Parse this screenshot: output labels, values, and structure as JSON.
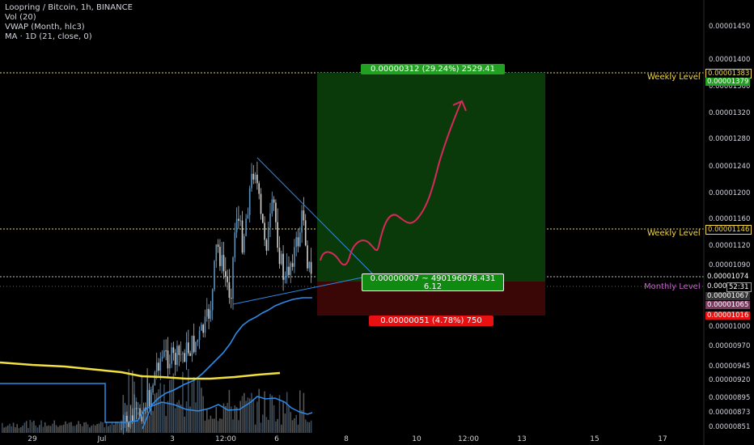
{
  "legend": {
    "title": "Loopring / Bitcoin, 1h, BINANCE",
    "vol": "Vol (20)",
    "vwap": "VWAP (Month, hlc3)",
    "ma": "MA · 1D (21, close, 0)"
  },
  "colors": {
    "background": "#000000",
    "level_line": "#e6d27a",
    "weekly_label": "#f5d94a",
    "monthly_label": "#c266c8",
    "target_zone": "#0a3a0a",
    "stop_zone": "#3a0606",
    "profit_badge": "#22a022",
    "loss_badge": "#e81010",
    "vwap": "#2e8be6",
    "ma": "#f0e040",
    "projection": "#d9285a"
  },
  "price_axis": {
    "ticks": [
      "0.00001450",
      "0.00001400",
      "0.00001360",
      "0.00001320",
      "0.00001280",
      "0.00001240",
      "0.00001200",
      "0.00001160",
      "0.00001120",
      "0.00001090",
      "0.00001000",
      "0.00000970",
      "0.00000945",
      "0.00000920",
      "0.00000895",
      "0.00000873",
      "0.00000851"
    ],
    "badges": [
      {
        "text": "0.00001383",
        "kind": "level"
      },
      {
        "text": "0.00001379",
        "kind": "profit"
      },
      {
        "text": "0.00001146",
        "kind": "level"
      },
      {
        "text": "0.00001074",
        "kind": "current"
      },
      {
        "text": "0.000",
        "kind": "current-short"
      },
      {
        "text": "52:31",
        "kind": "timer"
      },
      {
        "text": "0.00001067",
        "kind": "dark"
      },
      {
        "text": "0.00001065",
        "kind": "purple"
      },
      {
        "text": "0.00001016",
        "kind": "loss"
      }
    ]
  },
  "time_axis": {
    "ticks": [
      "29",
      "Jul",
      "3",
      "12:00",
      "6",
      "8",
      "10",
      "12:00",
      "13",
      "15",
      "17"
    ]
  },
  "levels": {
    "weekly_top": "Weekly Level",
    "weekly_mid": "Weekly Level",
    "monthly": "Monthly Level"
  },
  "position": {
    "profit_text": "0.00000312 (29.24%) 2529.41",
    "entry_text_line1": "0.00000007 ~ 490196078.431",
    "entry_text_line2": "6.12",
    "loss_text": "0.00000051 (4.78%) 750"
  },
  "chart_data": {
    "type": "candlestick",
    "title": "Loopring / Bitcoin, 1h, BINANCE",
    "xlabel": "",
    "ylabel": "",
    "ylim": [
      8.51e-06,
      1.45e-05
    ],
    "price_levels": {
      "weekly_level_high": 1.383e-05,
      "weekly_level_low": 1.146e-05,
      "current": 1.074e-05,
      "target": 1.379e-05,
      "entry": 1.067e-05,
      "stop": 1.016e-05
    },
    "series": [
      {
        "name": "VWAP (Month, hlc3)",
        "x": [
          "29",
          "Jul",
          "3",
          "12:00",
          "6"
        ],
        "values": [
          8.7e-06,
          8.6e-06,
          9.3e-06,
          9.9e-06,
          1.06e-05
        ]
      },
      {
        "name": "MA · 1D (21, close, 0)",
        "x": [
          "29",
          "Jul",
          "3",
          "12:00",
          "6"
        ],
        "values": [
          9.4e-06,
          9.3e-06,
          9.2e-06,
          9.2e-06,
          9.3e-06
        ]
      }
    ]
  }
}
